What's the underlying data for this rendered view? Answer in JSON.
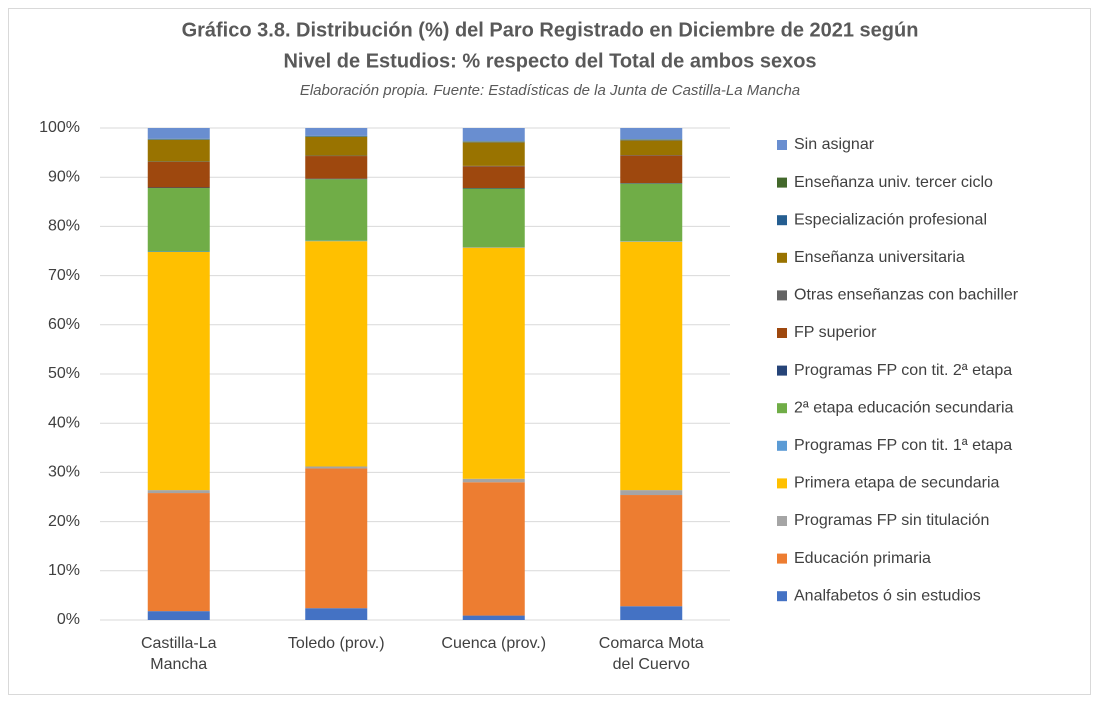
{
  "chart_data": {
    "type": "stacked_bar",
    "title": "Gráfico 3.8. Distribución (%) del Paro Registrado en Diciembre de 2021 según",
    "title_line2": "Nivel de Estudios: % respecto del Total de ambos sexos",
    "subtitle": "Elaboración propia. Fuente: Estadísticas de la Junta de Castilla-La Mancha",
    "categories": [
      "Castilla-La Mancha",
      "Toledo (prov.)",
      "Cuenca (prov.)",
      "Comarca Mota del Cuervo"
    ],
    "series": [
      {
        "name": "Analfabetos ó sin estudios",
        "color": "#4472c4",
        "values": [
          1.8,
          2.4,
          0.9,
          2.8
        ]
      },
      {
        "name": "Educación primaria",
        "color": "#ed7d31",
        "values": [
          24.0,
          28.4,
          27.1,
          22.6
        ]
      },
      {
        "name": "Programas FP sin titulación",
        "color": "#a5a5a5",
        "values": [
          0.6,
          0.4,
          0.7,
          1.0
        ]
      },
      {
        "name": "Primera etapa de secundaria",
        "color": "#ffc000",
        "values": [
          48.4,
          45.8,
          47.0,
          50.5
        ]
      },
      {
        "name": "Programas FP con tit. 1ª etapa",
        "color": "#5b9bd5",
        "values": [
          0.1,
          0.1,
          0.1,
          0.1
        ]
      },
      {
        "name": "2ª etapa educación secundaria",
        "color": "#70ad47",
        "values": [
          12.9,
          12.5,
          11.9,
          11.7
        ]
      },
      {
        "name": "Programas FP con tit. 2ª etapa",
        "color": "#264478",
        "values": [
          0.1,
          0.1,
          0.1,
          0.1
        ]
      },
      {
        "name": "FP superior",
        "color": "#9e480e",
        "values": [
          5.2,
          4.6,
          4.4,
          5.6
        ]
      },
      {
        "name": "Otras enseñanzas con bachiller",
        "color": "#636363",
        "values": [
          0.1,
          0.1,
          0.1,
          0.1
        ]
      },
      {
        "name": "Enseñanza universitaria",
        "color": "#997300",
        "values": [
          4.4,
          3.8,
          4.8,
          3.0
        ]
      },
      {
        "name": "Especialización profesional",
        "color": "#255e91",
        "values": [
          0.1,
          0.1,
          0.1,
          0.1
        ]
      },
      {
        "name": "Enseñanza univ. tercer ciclo",
        "color": "#43682b",
        "values": [
          0.1,
          0.1,
          0.1,
          0.1
        ]
      },
      {
        "name": "Sin asignar",
        "color": "#698ed0",
        "values": [
          2.2,
          1.6,
          2.7,
          2.3
        ]
      }
    ],
    "ylim": [
      0,
      100
    ],
    "yticks": [
      {
        "value": 0,
        "label": "0%"
      },
      {
        "value": 10,
        "label": "10%"
      },
      {
        "value": 20,
        "label": "20%"
      },
      {
        "value": 30,
        "label": "30%"
      },
      {
        "value": 40,
        "label": "40%"
      },
      {
        "value": 50,
        "label": "50%"
      },
      {
        "value": 60,
        "label": "60%"
      },
      {
        "value": 70,
        "label": "70%"
      },
      {
        "value": 80,
        "label": "80%"
      },
      {
        "value": 90,
        "label": "90%"
      },
      {
        "value": 100,
        "label": "100%"
      }
    ],
    "grid": true,
    "legend": "right"
  }
}
